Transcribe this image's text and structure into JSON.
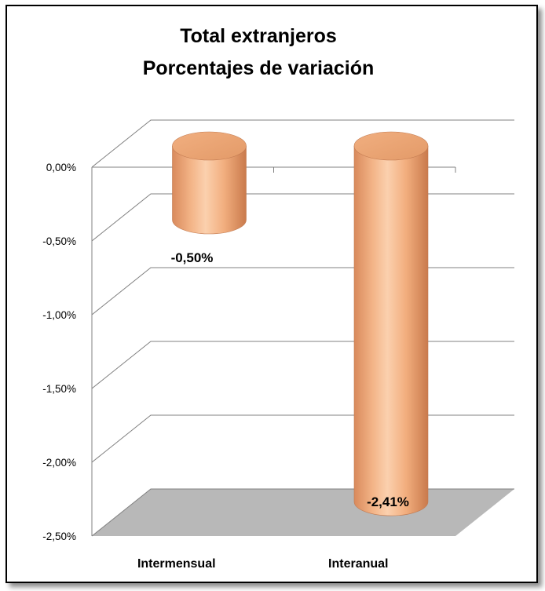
{
  "chart_data": {
    "type": "bar",
    "style": "3d-cylinder",
    "title_lines": [
      "Total extranjeros",
      "Porcentajes de variación"
    ],
    "categories": [
      "Intermensual",
      "Interanual"
    ],
    "values": [
      -0.5,
      -2.41
    ],
    "value_labels": [
      "-0,50%",
      "-2,41%"
    ],
    "yticks": [
      "0,00%",
      "-0,50%",
      "-1,00%",
      "-1,50%",
      "-2,00%",
      "-2,50%"
    ],
    "ylim": [
      -2.5,
      0
    ],
    "grid": true,
    "legend": "none",
    "colors": {
      "bar_fill": "#F6B88A",
      "bar_dark": "#D9885A",
      "bar_light": "#FBD3B2",
      "floor": "#B8B8B8",
      "grid": "#808080"
    }
  }
}
